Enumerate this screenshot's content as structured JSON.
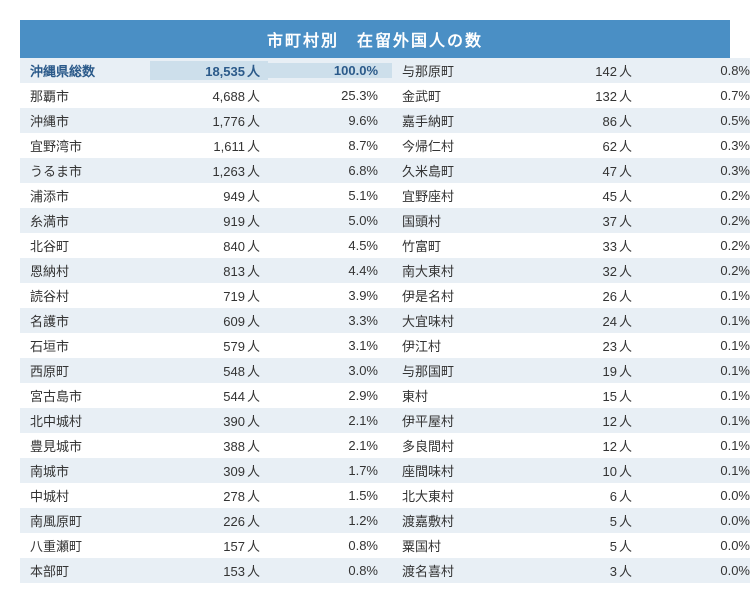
{
  "title": "市町村別　在留外国人の数",
  "count_suffix": "人",
  "header": {
    "name": "沖縄県総数",
    "count": "18,535",
    "pct": "100.0%"
  },
  "left": [
    {
      "name": "那覇市",
      "count": "4,688",
      "pct": "25.3%"
    },
    {
      "name": "沖縄市",
      "count": "1,776",
      "pct": "9.6%"
    },
    {
      "name": "宜野湾市",
      "count": "1,611",
      "pct": "8.7%"
    },
    {
      "name": "うるま市",
      "count": "1,263",
      "pct": "6.8%"
    },
    {
      "name": "浦添市",
      "count": "949",
      "pct": "5.1%"
    },
    {
      "name": "糸満市",
      "count": "919",
      "pct": "5.0%"
    },
    {
      "name": "北谷町",
      "count": "840",
      "pct": "4.5%"
    },
    {
      "name": "恩納村",
      "count": "813",
      "pct": "4.4%"
    },
    {
      "name": "読谷村",
      "count": "719",
      "pct": "3.9%"
    },
    {
      "name": "名護市",
      "count": "609",
      "pct": "3.3%"
    },
    {
      "name": "石垣市",
      "count": "579",
      "pct": "3.1%"
    },
    {
      "name": "西原町",
      "count": "548",
      "pct": "3.0%"
    },
    {
      "name": "宮古島市",
      "count": "544",
      "pct": "2.9%"
    },
    {
      "name": "北中城村",
      "count": "390",
      "pct": "2.1%"
    },
    {
      "name": "豊見城市",
      "count": "388",
      "pct": "2.1%"
    },
    {
      "name": "南城市",
      "count": "309",
      "pct": "1.7%"
    },
    {
      "name": "中城村",
      "count": "278",
      "pct": "1.5%"
    },
    {
      "name": "南風原町",
      "count": "226",
      "pct": "1.2%"
    },
    {
      "name": "八重瀬町",
      "count": "157",
      "pct": "0.8%"
    },
    {
      "name": "本部町",
      "count": "153",
      "pct": "0.8%"
    }
  ],
  "right": [
    {
      "name": "与那原町",
      "count": "142",
      "pct": "0.8%"
    },
    {
      "name": "金武町",
      "count": "132",
      "pct": "0.7%"
    },
    {
      "name": "嘉手納町",
      "count": "86",
      "pct": "0.5%"
    },
    {
      "name": "今帰仁村",
      "count": "62",
      "pct": "0.3%"
    },
    {
      "name": "久米島町",
      "count": "47",
      "pct": "0.3%"
    },
    {
      "name": "宜野座村",
      "count": "45",
      "pct": "0.2%"
    },
    {
      "name": "国頭村",
      "count": "37",
      "pct": "0.2%"
    },
    {
      "name": "竹富町",
      "count": "33",
      "pct": "0.2%"
    },
    {
      "name": "南大東村",
      "count": "32",
      "pct": "0.2%"
    },
    {
      "name": "伊是名村",
      "count": "26",
      "pct": "0.1%"
    },
    {
      "name": "大宜味村",
      "count": "24",
      "pct": "0.1%"
    },
    {
      "name": "伊江村",
      "count": "23",
      "pct": "0.1%"
    },
    {
      "name": "与那国町",
      "count": "19",
      "pct": "0.1%"
    },
    {
      "name": "東村",
      "count": "15",
      "pct": "0.1%"
    },
    {
      "name": "伊平屋村",
      "count": "12",
      "pct": "0.1%"
    },
    {
      "name": "多良間村",
      "count": "12",
      "pct": "0.1%"
    },
    {
      "name": "座間味村",
      "count": "10",
      "pct": "0.1%"
    },
    {
      "name": "北大東村",
      "count": "6",
      "pct": "0.0%"
    },
    {
      "name": "渡嘉敷村",
      "count": "5",
      "pct": "0.0%"
    },
    {
      "name": "粟国村",
      "count": "5",
      "pct": "0.0%"
    },
    {
      "name": "渡名喜村",
      "count": "3",
      "pct": "0.0%"
    }
  ],
  "colors": {
    "title_bg": "#4a8fc5",
    "header_highlight": "#cddfeb",
    "row_alt": "#e8eff5",
    "text": "#333333",
    "header_text": "#2b5a8a"
  }
}
